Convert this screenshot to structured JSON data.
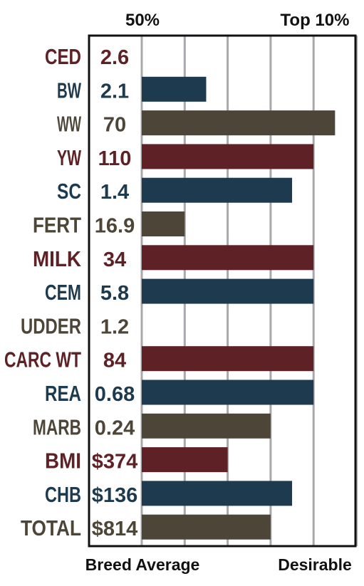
{
  "chart_data": {
    "type": "bar",
    "orientation": "horizontal",
    "top_labels": {
      "left": "50%",
      "right": "Top 10%"
    },
    "bottom_labels": {
      "left": "Breed Average",
      "right": "Desirable"
    },
    "xlim": [
      0,
      5
    ],
    "grid": true,
    "colors": {
      "red": "#5e2125",
      "blue": "#1e3a4e",
      "brown": "#4d4638",
      "grid": "#a9a9ad",
      "frame": "#111111"
    },
    "rows": [
      {
        "trait": "CED",
        "value_text": "2.6",
        "bar": 0,
        "color": "red"
      },
      {
        "trait": "BW",
        "value_text": "2.1",
        "bar": 1.5,
        "color": "blue"
      },
      {
        "trait": "WW",
        "value_text": "70",
        "bar": 4.5,
        "color": "brown"
      },
      {
        "trait": "YW",
        "value_text": "110",
        "bar": 4,
        "color": "red"
      },
      {
        "trait": "SC",
        "value_text": "1.4",
        "bar": 3.5,
        "color": "blue"
      },
      {
        "trait": "FERT",
        "value_text": "16.9",
        "bar": 1,
        "color": "brown"
      },
      {
        "trait": "MILK",
        "value_text": "34",
        "bar": 4,
        "color": "red"
      },
      {
        "trait": "CEM",
        "value_text": "5.8",
        "bar": 4,
        "color": "blue"
      },
      {
        "trait": "UDDER",
        "value_text": "1.2",
        "bar": 0,
        "color": "brown"
      },
      {
        "trait": "CARC WT",
        "value_text": "84",
        "bar": 4,
        "color": "red"
      },
      {
        "trait": "REA",
        "value_text": "0.68",
        "bar": 4,
        "color": "blue"
      },
      {
        "trait": "MARB",
        "value_text": "0.24",
        "bar": 3,
        "color": "brown"
      },
      {
        "trait": "BMI",
        "value_text": "$374",
        "bar": 2,
        "color": "red"
      },
      {
        "trait": "CHB",
        "value_text": "$136",
        "bar": 3.5,
        "color": "blue"
      },
      {
        "trait": "TOTAL",
        "value_text": "$814",
        "bar": 3,
        "color": "brown"
      }
    ]
  }
}
